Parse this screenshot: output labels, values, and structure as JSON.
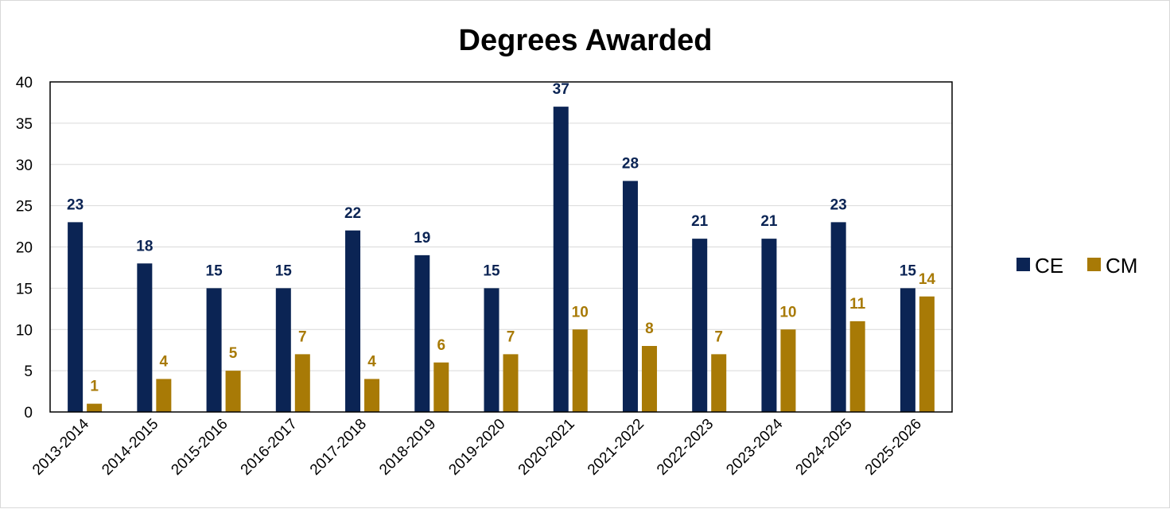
{
  "chart_data": {
    "type": "bar",
    "title": "Degrees Awarded",
    "xlabel": "",
    "ylabel": "",
    "ylim": [
      0,
      40
    ],
    "yticks": [
      0,
      5,
      10,
      15,
      20,
      25,
      30,
      35,
      40
    ],
    "grid": true,
    "legend_position": "right",
    "categories": [
      "2013-2014",
      "2014-2015",
      "2015-2016",
      "2016-2017",
      "2017-2018",
      "2018-2019",
      "2019-2020",
      "2020-2021",
      "2021-2022",
      "2022-2023",
      "2023-2024",
      "2024-2025",
      "2025-2026"
    ],
    "series": [
      {
        "name": "CE",
        "color": "#0b2454",
        "values": [
          23,
          18,
          15,
          15,
          22,
          19,
          15,
          37,
          28,
          21,
          21,
          23,
          15
        ]
      },
      {
        "name": "CM",
        "color": "#a87a06",
        "values": [
          1,
          4,
          5,
          7,
          4,
          6,
          7,
          10,
          8,
          7,
          10,
          11,
          14
        ]
      }
    ]
  }
}
